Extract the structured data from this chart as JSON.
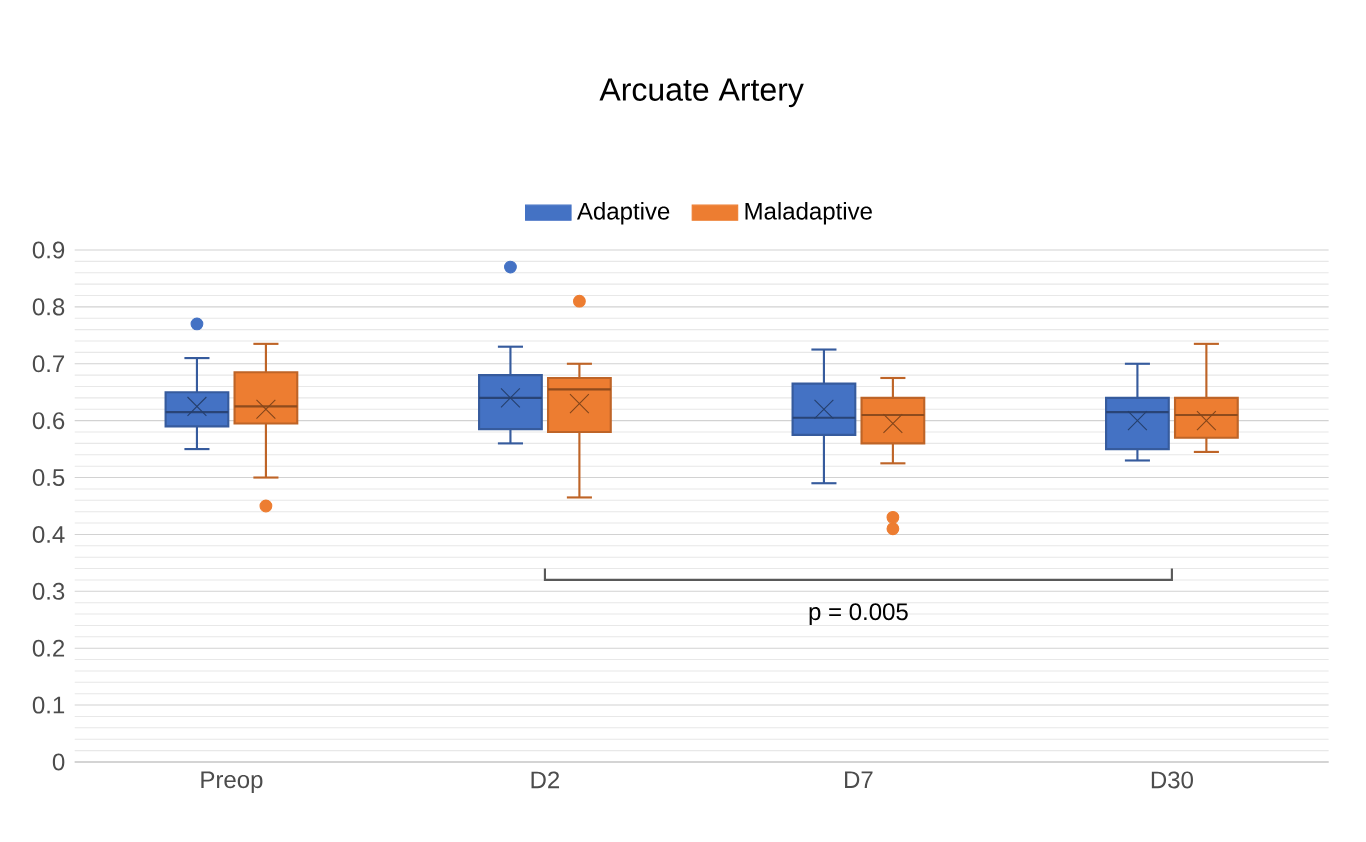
{
  "chart_data": {
    "type": "box",
    "title": "Arcuate Artery",
    "categories": [
      "Preop",
      "D2",
      "D7",
      "D30"
    ],
    "series": [
      {
        "name": "Adaptive",
        "color": "#4472c4",
        "boxes": [
          {
            "low": 0.55,
            "q1": 0.59,
            "median": 0.615,
            "q3": 0.65,
            "high": 0.71,
            "mean": 0.625,
            "outliers": [
              0.77
            ]
          },
          {
            "low": 0.56,
            "q1": 0.585,
            "median": 0.64,
            "q3": 0.68,
            "high": 0.73,
            "mean": 0.64,
            "outliers": [
              0.87
            ]
          },
          {
            "low": 0.49,
            "q1": 0.575,
            "median": 0.605,
            "q3": 0.665,
            "high": 0.725,
            "mean": 0.62
          },
          {
            "low": 0.53,
            "q1": 0.55,
            "median": 0.615,
            "q3": 0.64,
            "high": 0.7,
            "mean": 0.6
          }
        ]
      },
      {
        "name": "Maladaptive",
        "color": "#ed7d31",
        "boxes": [
          {
            "low": 0.5,
            "q1": 0.595,
            "median": 0.625,
            "q3": 0.685,
            "high": 0.735,
            "mean": 0.62,
            "outliers": [
              0.45
            ]
          },
          {
            "low": 0.465,
            "q1": 0.58,
            "median": 0.655,
            "q3": 0.675,
            "high": 0.7,
            "mean": 0.63,
            "outliers": [
              0.81
            ]
          },
          {
            "low": 0.525,
            "q1": 0.56,
            "median": 0.61,
            "q3": 0.64,
            "high": 0.675,
            "mean": 0.595,
            "outliers": [
              0.43,
              0.41
            ]
          },
          {
            "low": 0.545,
            "q1": 0.57,
            "median": 0.61,
            "q3": 0.64,
            "high": 0.735,
            "mean": 0.6
          }
        ]
      }
    ],
    "ylim": [
      0,
      0.9
    ],
    "yticks": [
      0,
      0.1,
      0.2,
      0.3,
      0.4,
      0.5,
      0.6,
      0.7,
      0.8,
      0.9
    ],
    "grid": "y",
    "legend": "top",
    "annotations": [
      "p = 0.005"
    ]
  }
}
